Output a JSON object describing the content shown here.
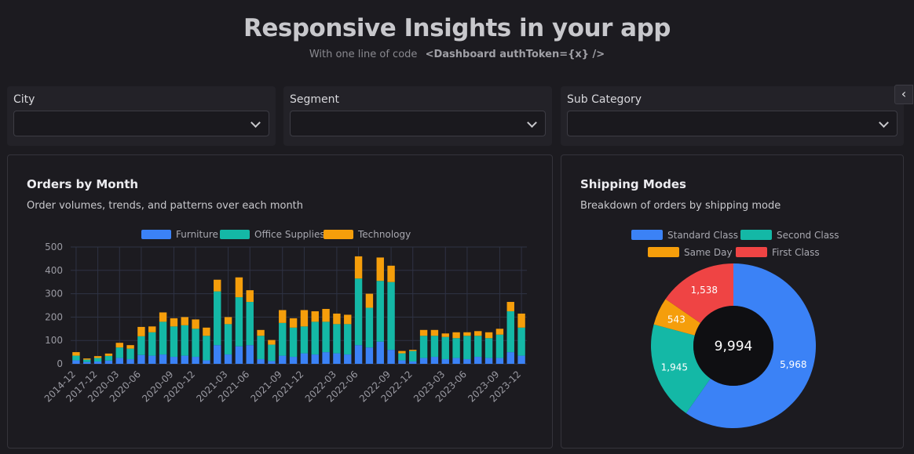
{
  "header": {
    "title": "Responsive Insights in your app",
    "subtitle": "With one line of code",
    "code": "<Dashboard authToken={x} />"
  },
  "filters": [
    {
      "label": "City",
      "value": ""
    },
    {
      "label": "Segment",
      "value": ""
    },
    {
      "label": "Sub Category",
      "value": ""
    }
  ],
  "collapse_icon": "chevron-left-icon",
  "orders_card": {
    "title": "Orders by Month",
    "subtitle": "Order volumes, trends, and patterns over each month"
  },
  "shipping_card": {
    "title": "Shipping Modes",
    "subtitle": "Breakdown of orders by shipping mode"
  },
  "colors": {
    "furniture": "#3b82f6",
    "office_supplies": "#14b8a6",
    "technology": "#f59e0b",
    "standard": "#3b82f6",
    "second": "#14b8a6",
    "same_day": "#f59e0b",
    "first": "#ef4444"
  },
  "chart_data": [
    {
      "type": "bar",
      "stacked": true,
      "categories": [
        "2014-12",
        "",
        "2017-12",
        "",
        "2020-03",
        "",
        "2020-06",
        "",
        "",
        "2020-09",
        "",
        "2020-12",
        "",
        "",
        "2021-03",
        "",
        "2021-06",
        "",
        "",
        "2021-09",
        "",
        "2021-12",
        "",
        "",
        "2022-03",
        "",
        "2022-06",
        "",
        "",
        "2022-09",
        "",
        "2022-12",
        "",
        "",
        "2023-03",
        "",
        "2023-06",
        "",
        "",
        "2023-09",
        "",
        "2023-12"
      ],
      "series": [
        {
          "name": "Furniture",
          "color": "#3b82f6",
          "values": [
            15,
            8,
            10,
            14,
            25,
            20,
            38,
            35,
            40,
            30,
            35,
            30,
            15,
            80,
            40,
            75,
            80,
            20,
            12,
            35,
            30,
            45,
            40,
            50,
            45,
            40,
            80,
            70,
            95,
            60,
            15,
            10,
            25,
            30,
            20,
            25,
            20,
            30,
            25,
            25,
            50,
            35
          ]
        },
        {
          "name": "Office Supplies",
          "color": "#14b8a6",
          "values": [
            20,
            10,
            15,
            20,
            45,
            45,
            80,
            100,
            140,
            130,
            130,
            120,
            105,
            230,
            130,
            210,
            185,
            100,
            70,
            140,
            125,
            115,
            140,
            130,
            125,
            130,
            285,
            170,
            260,
            290,
            30,
            45,
            95,
            90,
            95,
            85,
            100,
            90,
            85,
            100,
            175,
            120
          ]
        },
        {
          "name": "Technology",
          "color": "#f59e0b",
          "values": [
            15,
            5,
            8,
            10,
            20,
            15,
            40,
            25,
            40,
            35,
            35,
            40,
            35,
            50,
            30,
            85,
            50,
            25,
            20,
            55,
            40,
            70,
            45,
            55,
            45,
            40,
            95,
            60,
            100,
            70,
            10,
            5,
            25,
            25,
            15,
            25,
            15,
            20,
            25,
            25,
            40,
            60
          ]
        }
      ],
      "ylim": [
        0,
        500
      ],
      "yticks": [
        0,
        100,
        200,
        300,
        400,
        500
      ],
      "grid": true,
      "legend": "top"
    },
    {
      "type": "pie",
      "donut": true,
      "center_total": "9,994",
      "slices": [
        {
          "name": "Standard Class",
          "value": 5968,
          "label": "5,968",
          "color": "#3b82f6"
        },
        {
          "name": "Second Class",
          "value": 1945,
          "label": "1,945",
          "color": "#14b8a6"
        },
        {
          "name": "Same Day",
          "value": 543,
          "label": "543",
          "color": "#f59e0b"
        },
        {
          "name": "First Class",
          "value": 1538,
          "label": "1,538",
          "color": "#ef4444"
        }
      ],
      "legend": "top"
    }
  ]
}
